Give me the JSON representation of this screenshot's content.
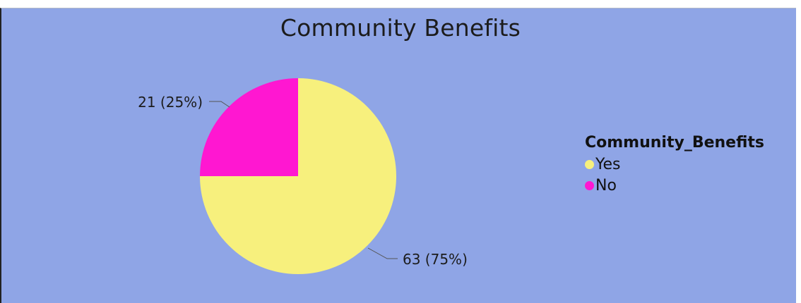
{
  "chart_data": {
    "type": "pie",
    "title": "Community Benefits",
    "legend_title": "Community_Benefits",
    "legend_position": "right",
    "slices": [
      {
        "label": "Yes",
        "value": 63,
        "percent": 75,
        "data_label": "63 (75%)",
        "color": "#f7f07d"
      },
      {
        "label": "No",
        "value": 21,
        "percent": 25,
        "data_label": "21 (25%)",
        "color": "#ff17d1"
      }
    ]
  },
  "colors": {
    "background": "#8fa5e6",
    "text": "#1c1c1c",
    "leader_line": "#555555"
  }
}
